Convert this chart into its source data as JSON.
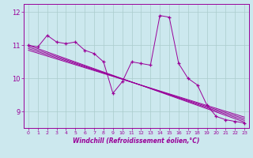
{
  "title": "",
  "xlabel": "Windchill (Refroidissement éolien,°C)",
  "ylabel": "",
  "bg_color": "#cce8ee",
  "line_color": "#990099",
  "grid_color": "#aacccc",
  "xlim": [
    -0.5,
    23.5
  ],
  "ylim": [
    8.5,
    12.25
  ],
  "yticks": [
    9,
    10,
    11,
    12
  ],
  "xticks": [
    0,
    1,
    2,
    3,
    4,
    5,
    6,
    7,
    8,
    9,
    10,
    11,
    12,
    13,
    14,
    15,
    16,
    17,
    18,
    19,
    20,
    21,
    22,
    23
  ],
  "main_x": [
    0,
    1,
    2,
    3,
    4,
    5,
    6,
    7,
    8,
    9,
    10,
    11,
    12,
    13,
    14,
    15,
    16,
    17,
    18,
    19,
    20,
    21,
    22,
    23
  ],
  "main_y": [
    11.0,
    10.95,
    11.3,
    11.1,
    11.05,
    11.1,
    10.85,
    10.75,
    10.5,
    9.55,
    9.9,
    10.5,
    10.45,
    10.4,
    11.9,
    11.85,
    10.45,
    10.0,
    9.8,
    9.2,
    8.85,
    8.75,
    8.7,
    8.65
  ],
  "trend1_x": [
    0,
    23
  ],
  "trend1_y": [
    11.0,
    8.68
  ],
  "trend2_x": [
    0,
    23
  ],
  "trend2_y": [
    10.95,
    8.73
  ],
  "trend3_x": [
    0,
    23
  ],
  "trend3_y": [
    10.9,
    8.78
  ],
  "trend4_x": [
    0,
    23
  ],
  "trend4_y": [
    10.85,
    8.83
  ]
}
